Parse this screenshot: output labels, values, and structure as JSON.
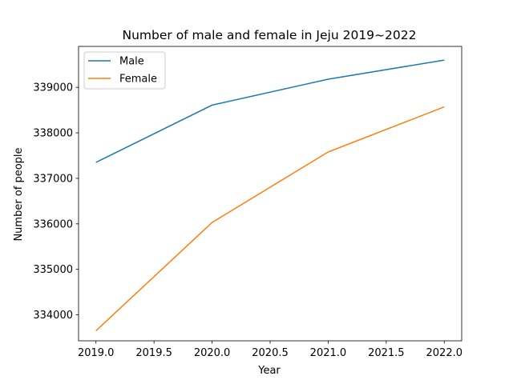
{
  "chart_data": {
    "type": "line",
    "title": "Number of male and female in Jeju 2019~2022",
    "xlabel": "Year",
    "ylabel": "Number of people",
    "x": [
      2019,
      2020,
      2021,
      2022
    ],
    "series": [
      {
        "name": "Male",
        "color": "#1f77b4",
        "values": [
          337350,
          338610,
          339180,
          339600
        ]
      },
      {
        "name": "Female",
        "color": "#ff7f0e",
        "values": [
          333650,
          336030,
          337580,
          338570
        ]
      }
    ],
    "xlim": [
      2018.85,
      2022.15
    ],
    "ylim": [
      333430,
      339900
    ],
    "xticks": [
      2019.0,
      2019.5,
      2020.0,
      2020.5,
      2021.0,
      2021.5,
      2022.0
    ],
    "xtick_labels": [
      "2019.0",
      "2019.5",
      "2020.0",
      "2020.5",
      "2021.0",
      "2021.5",
      "2022.0"
    ],
    "yticks": [
      334000,
      335000,
      336000,
      337000,
      338000,
      339000
    ],
    "ytick_labels": [
      "334000",
      "335000",
      "336000",
      "337000",
      "338000",
      "339000"
    ],
    "grid": false,
    "legend_position": "top-left"
  }
}
